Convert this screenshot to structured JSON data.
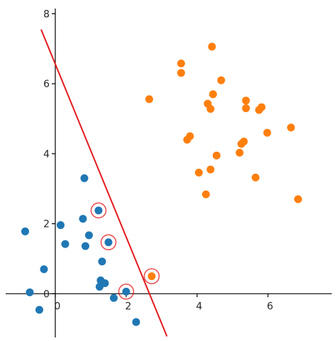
{
  "chart_data": {
    "type": "scatter",
    "title": "",
    "xlabel": "",
    "ylabel": "",
    "xlim": [
      -1.4,
      7.8
    ],
    "ylim": [
      -1.25,
      8.15
    ],
    "axes_spines": "through-origin",
    "grid": false,
    "x_ticks": [
      {
        "value": 0,
        "label": "0"
      },
      {
        "value": 2,
        "label": "2"
      },
      {
        "value": 4,
        "label": "4"
      },
      {
        "value": 6,
        "label": "6"
      }
    ],
    "y_ticks": [
      {
        "value": 0,
        "label": "0"
      },
      {
        "value": 2,
        "label": "2"
      },
      {
        "value": 4,
        "label": "4"
      },
      {
        "value": 6,
        "label": "6"
      },
      {
        "value": 8,
        "label": "8"
      }
    ],
    "series": [
      {
        "color": "#1f77b4",
        "points": [
          [
            -0.85,
            1.78
          ],
          [
            -0.72,
            0.04
          ],
          [
            -0.45,
            -0.46
          ],
          [
            -0.32,
            0.7
          ],
          [
            0.15,
            1.96
          ],
          [
            0.28,
            1.42
          ],
          [
            0.78,
            2.14
          ],
          [
            0.82,
            3.3
          ],
          [
            0.85,
            1.36
          ],
          [
            0.95,
            1.67
          ],
          [
            1.22,
            2.38
          ],
          [
            1.25,
            0.2
          ],
          [
            1.28,
            0.38
          ],
          [
            1.32,
            0.92
          ],
          [
            1.4,
            0.3
          ],
          [
            1.5,
            1.47
          ],
          [
            1.65,
            -0.12
          ],
          [
            2.0,
            0.06
          ],
          [
            2.28,
            -0.81
          ]
        ]
      },
      {
        "color": "#ff7f0e",
        "points": [
          [
            2.65,
            5.56
          ],
          [
            2.72,
            0.5
          ],
          [
            3.55,
            6.58
          ],
          [
            3.55,
            6.31
          ],
          [
            3.72,
            4.4
          ],
          [
            3.8,
            4.5
          ],
          [
            4.05,
            3.46
          ],
          [
            4.25,
            2.84
          ],
          [
            4.3,
            5.43
          ],
          [
            4.38,
            5.28
          ],
          [
            4.38,
            3.55
          ],
          [
            4.42,
            7.06
          ],
          [
            4.45,
            5.7
          ],
          [
            4.55,
            3.95
          ],
          [
            4.68,
            6.1
          ],
          [
            5.2,
            4.03
          ],
          [
            5.25,
            4.28
          ],
          [
            5.32,
            4.35
          ],
          [
            5.38,
            5.52
          ],
          [
            5.38,
            5.3
          ],
          [
            5.65,
            3.32
          ],
          [
            5.75,
            5.25
          ],
          [
            5.82,
            5.33
          ],
          [
            5.98,
            4.6
          ],
          [
            6.65,
            4.75
          ],
          [
            6.85,
            2.7
          ]
        ]
      }
    ],
    "highlighted_points": {
      "color": "#e41a1c",
      "points": [
        [
          1.22,
          2.38
        ],
        [
          1.5,
          1.47
        ],
        [
          2.0,
          0.06
        ],
        [
          2.72,
          0.5
        ]
      ]
    },
    "decision_line": {
      "color": "#e41a1c",
      "x": [
        -0.4,
        3.15
      ],
      "y": [
        7.55,
        -1.22
      ]
    }
  }
}
